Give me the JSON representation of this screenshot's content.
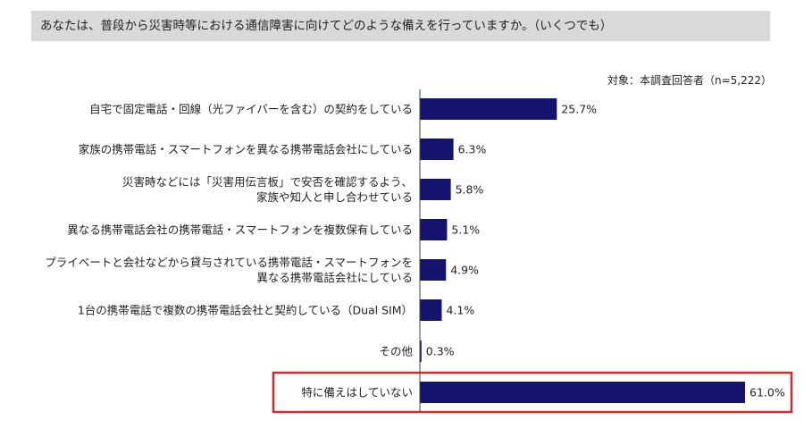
{
  "question": "あなたは、普段から災害時等における通信障害に向けてどのような備えを行っていますか。（いくつでも）",
  "respondents_note": "対象：本調査回答者（n=5,222）",
  "colors": {
    "bar": "#14146e",
    "highlight_border": "#d32a2a",
    "banner": "#d9d9d9"
  },
  "chart_data": {
    "type": "bar",
    "orientation": "horizontal",
    "categories": [
      "自宅で固定電話・回線（光ファイバーを含む）の契約をしている",
      "家族の携帯電話・スマートフォンを異なる携帯電話会社にしている",
      "災害時などには「災害用伝言板」で安否を確認するよう、\n家族や知人と申し合わせている",
      "異なる携帯電話会社の携帯電話・スマートフォンを複数保有している",
      "プライベートと会社などから貸与されている携帯電話・スマートフォンを\n異なる携帯電話会社にしている",
      "1台の携帯電話で複数の携帯電話会社と契約している（Dual SIM）",
      "その他",
      "特に備えはしていない"
    ],
    "values": [
      25.7,
      6.3,
      5.8,
      5.1,
      4.9,
      4.1,
      0.3,
      61.0
    ],
    "value_labels": [
      "25.7%",
      "6.3%",
      "5.8%",
      "5.1%",
      "4.9%",
      "4.1%",
      "0.3%",
      "61.0%"
    ],
    "unit": "%",
    "xlim": [
      0,
      61.0
    ],
    "grid": false,
    "legend": "none",
    "highlighted_category": "特に備えはしていない"
  }
}
